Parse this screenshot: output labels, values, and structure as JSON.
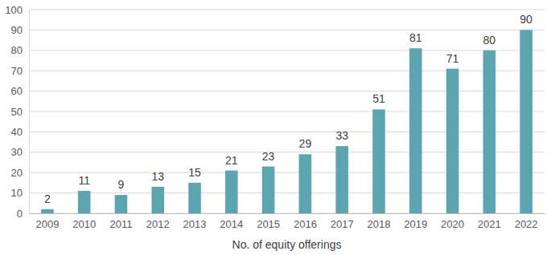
{
  "chart_data": {
    "type": "bar",
    "x_label": "No. of equity offerings",
    "categories": [
      "2009",
      "2010",
      "2011",
      "2012",
      "2013",
      "2014",
      "2015",
      "2016",
      "2017",
      "2018",
      "2019",
      "2020",
      "2021",
      "2022"
    ],
    "values": [
      2,
      11,
      9,
      13,
      15,
      21,
      23,
      29,
      33,
      51,
      81,
      71,
      80,
      90
    ],
    "color": "#5ba5b0",
    "ylim": [
      0,
      100
    ],
    "yticks": [
      0,
      10,
      20,
      30,
      40,
      50,
      60,
      70,
      80,
      90,
      100
    ],
    "grid": true,
    "data_labels": true
  }
}
